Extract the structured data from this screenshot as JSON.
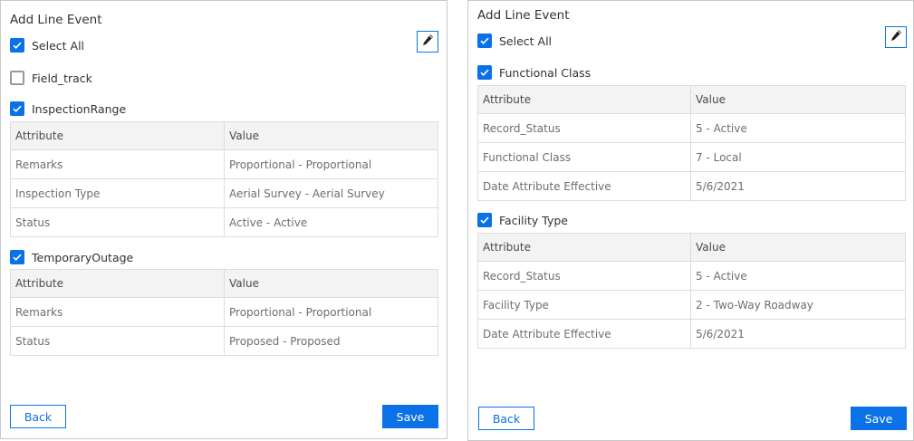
{
  "panels": [
    {
      "title": "Add Line Event",
      "select_all": "Select All",
      "groups": [
        {
          "label": "Field_track",
          "checked": false,
          "rows": []
        },
        {
          "label": "InspectionRange",
          "checked": true,
          "headers": [
            "Attribute",
            "Value"
          ],
          "rows": [
            [
              "Remarks",
              "Proportional - Proportional"
            ],
            [
              "Inspection Type",
              "Aerial Survey - Aerial Survey"
            ],
            [
              "Status",
              "Active - Active"
            ]
          ]
        },
        {
          "label": "TemporaryOutage",
          "checked": true,
          "headers": [
            "Attribute",
            "Value"
          ],
          "rows": [
            [
              "Remarks",
              "Proportional - Proportional"
            ],
            [
              "Status",
              "Proposed - Proposed"
            ]
          ]
        }
      ],
      "back": "Back",
      "save": "Save"
    },
    {
      "title": "Add Line Event",
      "select_all": "Select All",
      "groups": [
        {
          "label": "Functional Class",
          "checked": true,
          "headers": [
            "Attribute",
            "Value"
          ],
          "rows": [
            [
              "Record_Status",
              "5 - Active"
            ],
            [
              "Functional Class",
              "7 - Local"
            ],
            [
              "Date Attribute Effective",
              "5/6/2021"
            ]
          ]
        },
        {
          "label": "Facility Type",
          "checked": true,
          "headers": [
            "Attribute",
            "Value"
          ],
          "rows": [
            [
              "Record_Status",
              "5 - Active"
            ],
            [
              "Facility Type",
              "2 - Two-Way Roadway"
            ],
            [
              "Date Attribute Effective",
              "5/6/2021"
            ]
          ]
        }
      ],
      "back": "Back",
      "save": "Save"
    }
  ],
  "colors": {
    "accent": "#0a72e6"
  },
  "icons": {
    "checkbox": "check-icon",
    "edit": "pen-icon"
  }
}
